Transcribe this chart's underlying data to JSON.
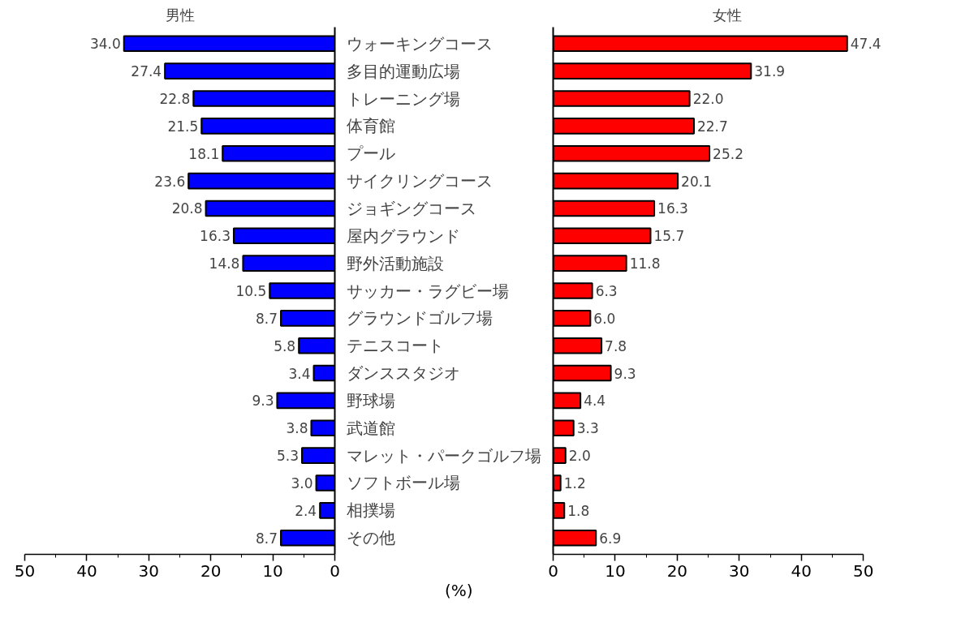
{
  "chart_data": [
    {
      "type": "bar",
      "orientation": "horizontal",
      "title": "男性",
      "xlabel": "(%)",
      "categories": [
        "ウォーキングコース",
        "多目的運動広場",
        "トレーニング場",
        "体育館",
        "プール",
        "サイクリングコース",
        "ジョギングコース",
        "屋内グラウンド",
        "野外活動施設",
        "サッカー・ラグビー場",
        "グラウンドゴルフ場",
        "テニスコート",
        "ダンススタジオ",
        "野球場",
        "武道館",
        "マレット・パークゴルフ場",
        "ソフトボール場",
        "相撲場",
        "その他"
      ],
      "values": [
        34.0,
        27.4,
        22.8,
        21.5,
        18.1,
        23.6,
        20.8,
        16.3,
        14.8,
        10.5,
        8.7,
        5.8,
        3.4,
        9.3,
        3.8,
        5.3,
        3.0,
        2.4,
        8.7
      ],
      "value_labels": [
        "34.0",
        "27.4",
        "22.8",
        "21.5",
        "18.1",
        "23.6",
        "20.8",
        "16.3",
        "14.8",
        "10.5",
        "8.7",
        "5.8",
        "3.4",
        "9.3",
        "3.8",
        "5.3",
        "3.0",
        "2.4",
        "8.7"
      ],
      "color": "#0000ff",
      "xlim": [
        50,
        0
      ],
      "xticks": [
        0,
        {
          "value": 5,
          "label": null
        },
        10,
        {
          "value": 15,
          "label": null
        },
        20,
        {
          "value": 25,
          "label": null
        },
        30,
        {
          "value": 35,
          "label": null
        },
        40,
        {
          "value": 45,
          "label": null
        },
        50
      ]
    },
    {
      "type": "bar",
      "orientation": "horizontal",
      "title": "女性",
      "tick_labels": "x",
      "categories": [
        null,
        null,
        null,
        null,
        null,
        null,
        null,
        null,
        null,
        null,
        null,
        null,
        null,
        null,
        null,
        null,
        null,
        null,
        null
      ],
      "values": [
        47.4,
        31.9,
        22.0,
        22.7,
        25.2,
        20.1,
        16.3,
        15.7,
        11.8,
        6.3,
        6.0,
        7.8,
        9.3,
        4.4,
        3.3,
        2.0,
        1.2,
        1.8,
        6.9
      ],
      "value_labels": [
        "47.4",
        "31.9",
        "22.0",
        "22.7",
        "25.2",
        "20.1",
        "16.3",
        "15.7",
        "11.8",
        "6.3",
        "6.0",
        "7.8",
        "9.3",
        "4.4",
        "3.3",
        "2.0",
        "1.2",
        "1.8",
        "6.9"
      ],
      "color": "#ff0000",
      "xlim": [
        0,
        50
      ],
      "xticks": [
        0,
        {
          "value": 5,
          "label": null
        },
        10,
        {
          "value": 15,
          "label": null
        },
        20,
        {
          "value": 25,
          "label": null
        },
        30,
        {
          "value": 35,
          "label": null
        },
        40,
        {
          "value": 45,
          "label": null
        },
        50
      ]
    }
  ]
}
